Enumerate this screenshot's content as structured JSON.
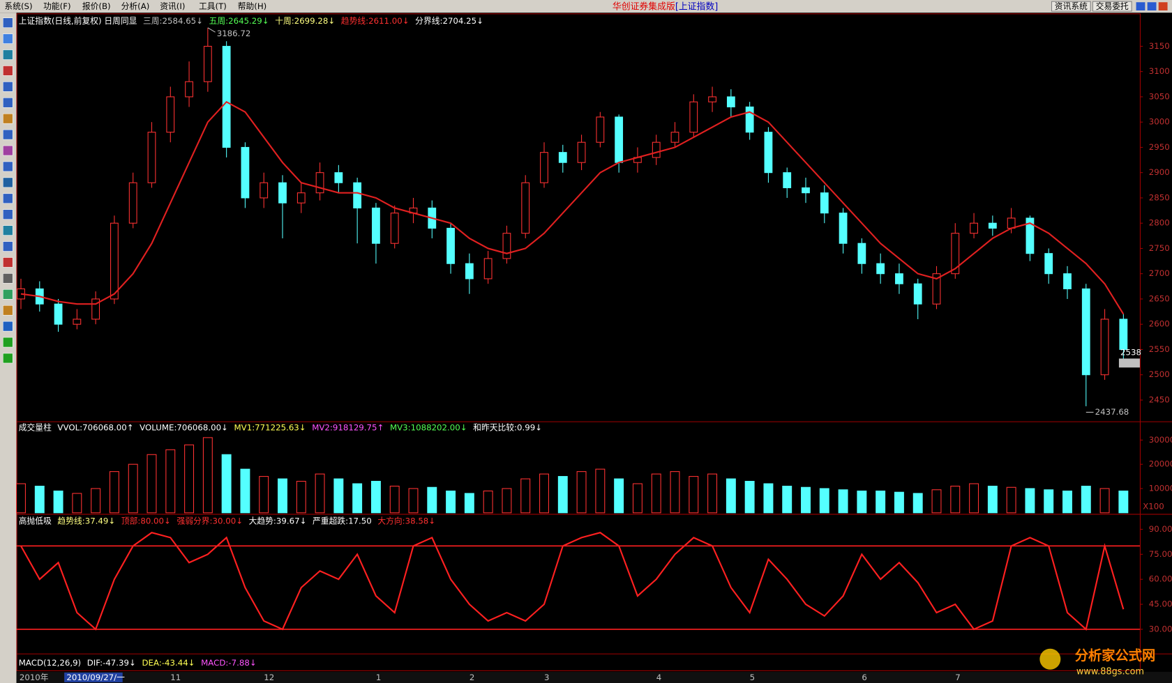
{
  "menu": [
    "系统(S)",
    "功能(F)",
    "报价(B)",
    "分析(A)",
    "资讯(I)",
    "工具(T)",
    "帮助(H)"
  ],
  "app_title": "华创证券集成版",
  "app_subtitle": "[上证指数]",
  "buttons": [
    "资讯系统",
    "交易委托"
  ],
  "watermark": {
    "name": "分析家公式网",
    "url": "www.88gs.com"
  },
  "date_bar": [
    "2010年",
    "2010/09/27/一"
  ],
  "chart_data": [
    {
      "type": "candlestick",
      "header": [
        {
          "text": "上证指数(日线,前复权) 日周同显",
          "color": "#ffffff"
        },
        {
          "text": "三周:2584.65↓",
          "color": "#c0c0c0"
        },
        {
          "text": "五周:2645.29↓",
          "color": "#54ff54"
        },
        {
          "text": "十周:2699.28↓",
          "color": "#ffff80"
        },
        {
          "text": "趋势线:2611.00↓",
          "color": "#ff3030"
        },
        {
          "text": "分界线:2704.25↓",
          "color": "#ffffff"
        }
      ],
      "categories": [
        null,
        null,
        null,
        null,
        null,
        null,
        null,
        null,
        "11",
        null,
        null,
        null,
        null,
        "12",
        null,
        null,
        null,
        null,
        null,
        "1",
        null,
        null,
        null,
        null,
        "2",
        null,
        null,
        null,
        "3",
        null,
        null,
        null,
        null,
        null,
        "4",
        null,
        null,
        null,
        null,
        "5",
        null,
        null,
        null,
        null,
        null,
        "6",
        null,
        null,
        null,
        null,
        "7",
        null,
        null,
        null,
        null,
        null,
        null,
        null,
        null,
        null
      ],
      "open": [
        2650,
        2670,
        2640,
        2600,
        2610,
        2650,
        2800,
        2880,
        2980,
        3050,
        3080,
        3150,
        2950,
        2850,
        2880,
        2840,
        2860,
        2900,
        2880,
        2830,
        2760,
        2820,
        2830,
        2790,
        2720,
        2690,
        2730,
        2780,
        2880,
        2940,
        2920,
        2960,
        3010,
        2920,
        2930,
        2960,
        2980,
        3040,
        3050,
        3030,
        2980,
        2900,
        2870,
        2860,
        2820,
        2760,
        2720,
        2700,
        2680,
        2640,
        2700,
        2780,
        2800,
        2790,
        2810,
        2740,
        2700,
        2670,
        2500,
        2610
      ],
      "high": [
        2690,
        2685,
        2650,
        2630,
        2665,
        2815,
        2900,
        3000,
        3070,
        3120,
        3186.72,
        3160,
        2960,
        2900,
        2895,
        2880,
        2920,
        2915,
        2890,
        2840,
        2835,
        2850,
        2845,
        2800,
        2740,
        2745,
        2795,
        2895,
        2960,
        2955,
        2975,
        3020,
        3015,
        2950,
        2975,
        3000,
        3055,
        3070,
        3065,
        3040,
        2990,
        2910,
        2890,
        2875,
        2830,
        2770,
        2740,
        2720,
        2690,
        2715,
        2800,
        2820,
        2815,
        2830,
        2815,
        2750,
        2715,
        2680,
        2630,
        2620
      ],
      "low": [
        2630,
        2625,
        2585,
        2590,
        2600,
        2640,
        2790,
        2870,
        2960,
        3030,
        3060,
        2930,
        2830,
        2830,
        2770,
        2820,
        2845,
        2860,
        2760,
        2720,
        2750,
        2800,
        2770,
        2700,
        2660,
        2680,
        2720,
        2770,
        2870,
        2900,
        2905,
        2950,
        2900,
        2900,
        2915,
        2950,
        2970,
        3020,
        3010,
        2965,
        2880,
        2850,
        2840,
        2800,
        2740,
        2700,
        2680,
        2660,
        2610,
        2630,
        2690,
        2770,
        2775,
        2780,
        2725,
        2680,
        2650,
        2437.68,
        2490,
        2530
      ],
      "close": [
        2670,
        2640,
        2600,
        2610,
        2650,
        2800,
        2880,
        2980,
        3050,
        3080,
        3150,
        2950,
        2850,
        2880,
        2840,
        2860,
        2900,
        2880,
        2830,
        2760,
        2820,
        2830,
        2790,
        2720,
        2690,
        2730,
        2780,
        2880,
        2940,
        2920,
        2960,
        3010,
        2920,
        2930,
        2960,
        2980,
        3040,
        3050,
        3030,
        2980,
        2900,
        2870,
        2860,
        2820,
        2760,
        2720,
        2700,
        2680,
        2640,
        2700,
        2780,
        2800,
        2790,
        2810,
        2740,
        2700,
        2670,
        2500,
        2610,
        2550
      ],
      "trend": [
        2660,
        2655,
        2645,
        2640,
        2640,
        2660,
        2700,
        2760,
        2840,
        2920,
        3000,
        3040,
        3020,
        2970,
        2920,
        2880,
        2870,
        2860,
        2860,
        2850,
        2830,
        2820,
        2810,
        2800,
        2770,
        2750,
        2740,
        2750,
        2780,
        2820,
        2860,
        2900,
        2920,
        2930,
        2940,
        2950,
        2970,
        2990,
        3010,
        3020,
        3000,
        2960,
        2920,
        2880,
        2840,
        2800,
        2760,
        2730,
        2700,
        2690,
        2710,
        2740,
        2770,
        2790,
        2800,
        2780,
        2750,
        2720,
        2680,
        2620
      ],
      "up_color": "#ff3232",
      "down_color": "#54ffff",
      "trend_color": "#e02020",
      "current_price": 2538,
      "ylim": [
        2410,
        3215
      ],
      "yticks": [
        2450,
        2500,
        2550,
        2600,
        2650,
        2700,
        2750,
        2800,
        2850,
        2900,
        2950,
        3000,
        3050,
        3100,
        3150
      ]
    },
    {
      "type": "bar",
      "header": [
        {
          "text": "成交量柱",
          "color": "#ffffff"
        },
        {
          "text": "VVOL:706068.00↑",
          "color": "#ffffff"
        },
        {
          "text": "VOLUME:706068.00↓",
          "color": "#ffffff"
        },
        {
          "text": "MV1:771225.63↓",
          "color": "#ffff54"
        },
        {
          "text": "MV2:918129.75↑",
          "color": "#ff54ff"
        },
        {
          "text": "MV3:1088202.00↓",
          "color": "#54ff54"
        },
        {
          "text": "和昨天比较:0.99↓",
          "color": "#ffffff"
        }
      ],
      "values": [
        12000,
        11000,
        9000,
        8000,
        10000,
        17000,
        20000,
        24000,
        26000,
        28000,
        31000,
        24000,
        18000,
        15000,
        14000,
        13000,
        16000,
        14000,
        12000,
        13000,
        11000,
        10000,
        10500,
        9000,
        8000,
        9000,
        10000,
        14000,
        16000,
        15000,
        17000,
        18000,
        14000,
        12000,
        16000,
        17000,
        15000,
        16000,
        14000,
        13000,
        12000,
        11000,
        10500,
        10000,
        9500,
        9000,
        9000,
        8500,
        8000,
        9500,
        11000,
        12000,
        11000,
        10500,
        10000,
        9500,
        9000,
        11000,
        10000,
        9000
      ],
      "unit_label": "X100",
      "ylim": [
        0,
        37000
      ],
      "yticks": [
        10000,
        20000,
        30000
      ]
    },
    {
      "type": "line",
      "header": [
        {
          "text": "高抛低吸",
          "color": "#ffffff"
        },
        {
          "text": "趋势线:37.49↓",
          "color": "#ffff80"
        },
        {
          "text": "顶部:80.00↓",
          "color": "#ff3030"
        },
        {
          "text": "强弱分界:30.00↓",
          "color": "#ff3030"
        },
        {
          "text": "大趋势:39.67↓",
          "color": "#ffffff"
        },
        {
          "text": "严重超跌:17.50",
          "color": "#ffffff"
        },
        {
          "text": "大方向:38.58↓",
          "color": "#ff3030"
        }
      ],
      "values": [
        80,
        60,
        70,
        40,
        30,
        60,
        80,
        88,
        85,
        70,
        75,
        85,
        55,
        35,
        30,
        55,
        65,
        60,
        75,
        50,
        40,
        80,
        85,
        60,
        45,
        35,
        40,
        35,
        45,
        80,
        85,
        88,
        80,
        50,
        60,
        75,
        85,
        80,
        55,
        40,
        72,
        60,
        45,
        38,
        50,
        75,
        60,
        70,
        58,
        40,
        45,
        30,
        35,
        80,
        85,
        80,
        40,
        30,
        80,
        42
      ],
      "color": "#ff2020",
      "hlines": [
        80,
        30
      ],
      "ylim": [
        16,
        98
      ],
      "yticks": [
        {
          "value": 30,
          "label": "30.00"
        },
        {
          "value": 45,
          "label": "45.00"
        },
        {
          "value": 60,
          "label": "60.00"
        },
        {
          "value": 75,
          "label": "75.00"
        },
        {
          "value": 90,
          "label": "90.00"
        }
      ]
    },
    {
      "type": "macd",
      "header": [
        {
          "text": "MACD(12,26,9)",
          "color": "#ffffff"
        },
        {
          "text": "DIF:-47.39↓",
          "color": "#ffffff"
        },
        {
          "text": "DEA:-43.44↓",
          "color": "#ffff54"
        },
        {
          "text": "MACD:-7.88↓",
          "color": "#ff54ff"
        }
      ]
    }
  ]
}
